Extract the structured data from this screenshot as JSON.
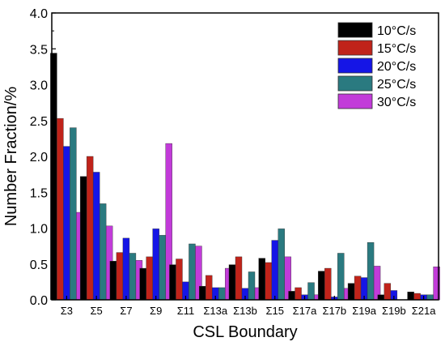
{
  "chart_data": {
    "type": "bar",
    "xlabel": "CSL Boundary",
    "ylabel": "Number Fraction/%",
    "ylim": [
      0,
      4.0
    ],
    "yticks": [
      "0.0",
      "0.5",
      "1.0",
      "1.5",
      "2.0",
      "2.5",
      "3.0",
      "3.5",
      "4.0"
    ],
    "categories": [
      "Σ3",
      "Σ5",
      "Σ7",
      "Σ9",
      "Σ11",
      "Σ13a",
      "Σ13b",
      "Σ15",
      "Σ17a",
      "Σ17b",
      "Σ19a",
      "Σ19b",
      "Σ21a"
    ],
    "legend_position": "top-right",
    "series": [
      {
        "name": "10°C/s",
        "color": "#000000",
        "values": [
          3.44,
          1.72,
          0.54,
          0.44,
          0.49,
          0.19,
          0.49,
          0.58,
          0.12,
          0.4,
          0.23,
          0.07,
          0.11
        ]
      },
      {
        "name": "15°C/s",
        "color": "#c0231a",
        "values": [
          2.53,
          2.0,
          0.66,
          0.6,
          0.57,
          0.34,
          0.6,
          0.52,
          0.17,
          0.44,
          0.33,
          0.23,
          0.09
        ]
      },
      {
        "name": "20°C/s",
        "color": "#1515e6",
        "values": [
          2.14,
          1.78,
          0.86,
          0.99,
          0.25,
          0.17,
          0.16,
          0.83,
          0.07,
          0.04,
          0.31,
          0.13,
          0.07
        ]
      },
      {
        "name": "25°C/s",
        "color": "#2a7a80",
        "values": [
          2.4,
          1.34,
          0.65,
          0.9,
          0.78,
          0.17,
          0.39,
          0.99,
          0.24,
          0.65,
          0.8,
          0.0,
          0.07
        ]
      },
      {
        "name": "30°C/s",
        "color": "#c23bd9",
        "values": [
          1.22,
          1.03,
          0.55,
          2.18,
          0.75,
          0.44,
          0.17,
          0.6,
          0.07,
          0.16,
          0.47,
          0.0,
          0.46
        ]
      }
    ]
  }
}
